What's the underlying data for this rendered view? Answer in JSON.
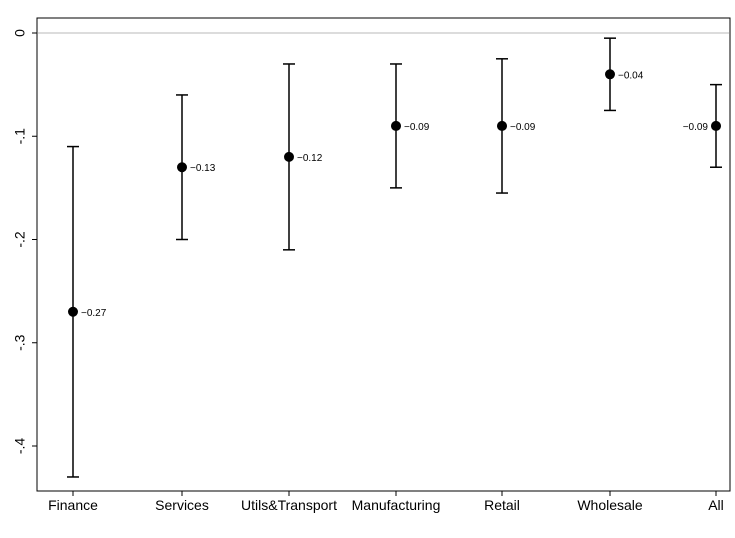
{
  "chart_data": {
    "type": "scatter",
    "subtype": "point-estimate-with-confidence-intervals",
    "categories": [
      "Finance",
      "Services",
      "Utils&Transport",
      "Manufacturing",
      "Retail",
      "Wholesale",
      "All"
    ],
    "estimates": [
      -0.27,
      -0.13,
      -0.12,
      -0.09,
      -0.09,
      -0.04,
      -0.09
    ],
    "ci_lower": [
      -0.43,
      -0.2,
      -0.21,
      -0.15,
      -0.155,
      -0.075,
      -0.13
    ],
    "ci_upper": [
      -0.11,
      -0.06,
      -0.03,
      -0.03,
      -0.025,
      -0.005,
      -0.05
    ],
    "point_labels": [
      "−0.27",
      "−0.13",
      "−0.12",
      "−0.09",
      "−0.09",
      "−0.04",
      "−0.09"
    ],
    "point_label_side": [
      "right",
      "right",
      "right",
      "right",
      "right",
      "right",
      "left"
    ],
    "y_ticks": [
      0,
      -0.1,
      -0.2,
      -0.3,
      -0.4
    ],
    "y_tick_labels": [
      "0",
      "-.1",
      "-.2",
      "-.3",
      "-.4"
    ],
    "ylim": [
      -0.44,
      0.01
    ],
    "reference_line": 0,
    "title": "",
    "xlabel": "",
    "ylabel": "",
    "grid": false,
    "colors": {
      "markers": "#000000",
      "reference_line": "#c8c8c8",
      "axes": "#000000"
    }
  }
}
